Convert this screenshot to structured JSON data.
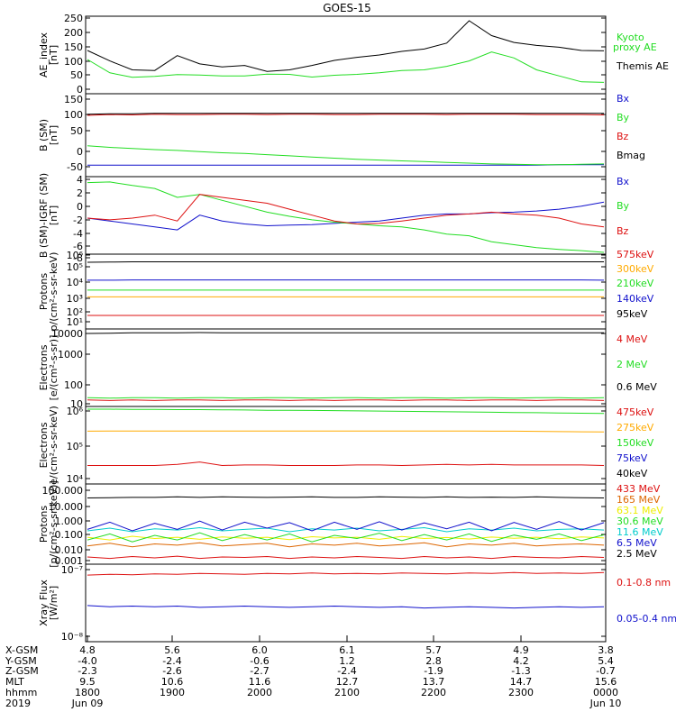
{
  "title": "GOES-15",
  "chart_data": [
    {
      "type": "line",
      "ylabel": [
        "AE_index",
        "[nT]"
      ],
      "yticks": [
        "250",
        "200",
        "150",
        "100",
        "50",
        "0"
      ],
      "ylim": [
        0,
        260
      ],
      "series": [
        {
          "name": "Kyoto",
          "name2": "proxy AE",
          "color": "#22dd22",
          "values": [
            115,
            70,
            55,
            58,
            64,
            63,
            60,
            60,
            66,
            65,
            56,
            62,
            65,
            70,
            78,
            80,
            92,
            110,
            140,
            120,
            80,
            60,
            40,
            38
          ]
        },
        {
          "name": "Themis AE",
          "color": "#000000",
          "values": [
            145,
            110,
            80,
            78,
            128,
            100,
            90,
            95,
            75,
            80,
            95,
            112,
            122,
            130,
            142,
            150,
            170,
            245,
            195,
            172,
            162,
            156,
            145,
            144
          ]
        }
      ]
    },
    {
      "type": "line",
      "ylabel": [
        "B (SM)",
        "[nT]"
      ],
      "yticks": [
        "150",
        "100",
        "50",
        "0",
        "-50"
      ],
      "ylim": [
        -60,
        155
      ],
      "series": [
        {
          "name": "Bx",
          "color": "#1111cc",
          "values": [
            -30,
            -30,
            -30,
            -30,
            -30,
            -30,
            -30,
            -30,
            -30,
            -30,
            -30,
            -30,
            -30,
            -30,
            -30,
            -30,
            -30,
            -30,
            -30,
            -30,
            -30,
            -29,
            -29,
            -29
          ]
        },
        {
          "name": "By",
          "color": "#22dd22",
          "values": [
            20,
            16,
            13,
            10,
            8,
            5,
            2,
            0,
            -3,
            -6,
            -9,
            -12,
            -15,
            -17,
            -19,
            -21,
            -23,
            -25,
            -27,
            -28,
            -29,
            -29,
            -28,
            -27
          ]
        },
        {
          "name": "Bz",
          "color": "#dd1111",
          "values": [
            99,
            101,
            100,
            102,
            101,
            101,
            102,
            102,
            101,
            102,
            102,
            101,
            101,
            102,
            102,
            102,
            101,
            102,
            102,
            102,
            101,
            101,
            101,
            100
          ]
        },
        {
          "name": "Bmag",
          "color": "#000000",
          "values": [
            102,
            103,
            103,
            104,
            104,
            104,
            104,
            104,
            104,
            104,
            104,
            104,
            104,
            104,
            104,
            104,
            104,
            104,
            104,
            104,
            104,
            104,
            104,
            104
          ]
        }
      ]
    },
    {
      "type": "line",
      "ylabel": [
        "B (SM)-IGRF (SM)",
        "[nT]"
      ],
      "yticks": [
        "4",
        "2",
        "0",
        "-2",
        "-4",
        "-6",
        "-8"
      ],
      "ylim": [
        -8.6,
        4.5
      ],
      "series": [
        {
          "name": "Bx",
          "color": "#1111cc",
          "values": [
            -2.5,
            -3,
            -3.5,
            -4,
            -4.5,
            -2,
            -3,
            -3.5,
            -3.8,
            -3.7,
            -3.6,
            -3.4,
            -3.2,
            -3,
            -2.5,
            -2,
            -1.8,
            -1.8,
            -1.6,
            -1.5,
            -1.3,
            -1,
            -0.5,
            0.2
          ]
        },
        {
          "name": "By",
          "color": "#22dd22",
          "values": [
            3.5,
            3.6,
            3,
            2.5,
            1,
            1.5,
            0.5,
            -0.5,
            -1.5,
            -2.2,
            -2.8,
            -3.2,
            -3.5,
            -3.8,
            -4,
            -4.5,
            -5.2,
            -5.5,
            -6.5,
            -7,
            -7.5,
            -7.8,
            -8,
            -8.3
          ]
        },
        {
          "name": "Bz",
          "color": "#dd1111",
          "values": [
            -2.5,
            -2.8,
            -2.5,
            -2,
            -3,
            1.5,
            1,
            0.5,
            0,
            -1,
            -2,
            -3,
            -3.5,
            -3.4,
            -3,
            -2.5,
            -2,
            -1.8,
            -1.5,
            -1.8,
            -2,
            -2.5,
            -3.5,
            -4
          ]
        }
      ]
    },
    {
      "type": "line",
      "log": true,
      "ylabel": [
        "Protons",
        "p/(cm²-s-sr-keV)"
      ],
      "yticks": [
        "10⁶",
        "10⁵",
        "10⁴",
        "10³",
        "10²",
        "10¹"
      ],
      "ylim": [
        3,
        1000000
      ],
      "series": [
        {
          "name": "575keV",
          "color": "#dd1111",
          "values": [
            30,
            30,
            30,
            30,
            30,
            30,
            30,
            30,
            30,
            30,
            30,
            30,
            30,
            30,
            30,
            30,
            30,
            30,
            30,
            30,
            30,
            30,
            30,
            30
          ]
        },
        {
          "name": "300keV",
          "color": "#ffaa00",
          "values": [
            700,
            700,
            700,
            700,
            700,
            700,
            700,
            700,
            700,
            700,
            700,
            700,
            700,
            700,
            700,
            700,
            700,
            700,
            700,
            700,
            700,
            700,
            700,
            700
          ]
        },
        {
          "name": "210keV",
          "color": "#22dd22",
          "values": [
            2200,
            2200,
            2200,
            2200,
            2200,
            2200,
            2200,
            2200,
            2200,
            2200,
            2200,
            2200,
            2200,
            2200,
            2200,
            2200,
            2200,
            2200,
            2200,
            2200,
            2200,
            2200,
            2200,
            2200
          ]
        },
        {
          "name": "140keV",
          "color": "#1111cc",
          "values": [
            12000,
            12000,
            12500,
            12500,
            12500,
            12500,
            12500,
            12500,
            12500,
            12500,
            12500,
            12500,
            12500,
            12500,
            12500,
            12500,
            12500,
            12500,
            12500,
            12500,
            12500,
            12500,
            12500,
            12000
          ]
        },
        {
          "name": "95keV",
          "color": "#000000",
          "values": [
            250000,
            260000,
            270000,
            270000,
            270000,
            270000,
            270000,
            270000,
            270000,
            270000,
            270000,
            270000,
            270000,
            270000,
            270000,
            270000,
            270000,
            270000,
            270000,
            270000,
            270000,
            270000,
            270000,
            270000
          ]
        }
      ]
    },
    {
      "type": "line",
      "log": true,
      "ylabel": [
        "Electrons",
        "[e/(cm²-s-sr)]"
      ],
      "yticks": [
        "10000",
        "1000",
        "100",
        "10"
      ],
      "ylim": [
        10,
        10500
      ],
      "series": [
        {
          "name": "4 MeV",
          "color": "#dd1111",
          "values": [
            18,
            17,
            18,
            17,
            18,
            18,
            17,
            18,
            18,
            17,
            18,
            17,
            18,
            18,
            17,
            18,
            18,
            17,
            18,
            18,
            17,
            18,
            18,
            17
          ]
        },
        {
          "name": "2 MeV",
          "color": "#22dd22",
          "values": [
            22,
            21,
            22,
            22,
            21,
            22,
            22,
            21,
            22,
            22,
            21,
            22,
            22,
            21,
            22,
            22,
            21,
            22,
            22,
            21,
            22,
            22,
            21,
            22
          ]
        },
        {
          "name": "0.6 MeV",
          "color": "#000000",
          "values": [
            7000,
            7200,
            7400,
            7500,
            7500,
            7600,
            7400,
            7500,
            7500,
            7500,
            7500,
            7500,
            7500,
            7500,
            7500,
            7500,
            7500,
            7500,
            7500,
            7500,
            7500,
            7500,
            7500,
            7500
          ]
        }
      ]
    },
    {
      "type": "line",
      "log": true,
      "ylabel": [
        "Electrons",
        "e/(cm²-s-sr-keV)"
      ],
      "yticks": [
        "10⁶",
        "10⁵",
        "10⁴"
      ],
      "ylim": [
        10000,
        1000000
      ],
      "series": [
        {
          "name": "475keV",
          "color": "#dd1111",
          "values": [
            30000,
            30000,
            30000,
            30000,
            32000,
            37000,
            30000,
            31000,
            31000,
            30000,
            30000,
            30000,
            31000,
            31000,
            30000,
            31000,
            32000,
            31000,
            32000,
            31000,
            31000,
            31000,
            31000,
            30000
          ]
        },
        {
          "name": "275keV",
          "color": "#ffaa00",
          "values": [
            230000,
            232000,
            232000,
            232000,
            232000,
            232000,
            232000,
            232000,
            232000,
            232000,
            232000,
            232000,
            232000,
            232000,
            232000,
            232000,
            232000,
            232000,
            230000,
            230000,
            228000,
            225000,
            222000,
            220000
          ]
        },
        {
          "name": "150keV",
          "color": "#22dd22",
          "values": [
            850000,
            850000,
            840000,
            840000,
            830000,
            830000,
            820000,
            810000,
            800000,
            800000,
            790000,
            780000,
            770000,
            760000,
            750000,
            740000,
            730000,
            720000,
            710000,
            700000,
            690000,
            680000,
            670000,
            660000
          ]
        },
        {
          "name": "75keV",
          "color": "#1111cc",
          "values": []
        },
        {
          "name": "40keV",
          "color": "#000000",
          "values": []
        }
      ]
    },
    {
      "type": "line",
      "log": true,
      "ylabel": [
        "Protons",
        "[p/(cm²-s-sr-keV)]"
      ],
      "yticks": [
        "100.000",
        "10.000",
        "1.000",
        "0.100",
        "0.010",
        "0.001"
      ],
      "ylim": [
        0.0005,
        100
      ],
      "series": [
        {
          "name": "433 MeV",
          "color": "#dd1111",
          "values": [
            0.0015,
            0.0012,
            0.0016,
            0.0013,
            0.0017,
            0.0012,
            0.0015,
            0.0014,
            0.0016,
            0.0012,
            0.0015,
            0.0013,
            0.0016,
            0.0014,
            0.0012,
            0.0016,
            0.0013,
            0.0015,
            0.0012,
            0.0016,
            0.0014,
            0.0013,
            0.0016,
            0.0014
          ]
        },
        {
          "name": "165 MeV",
          "color": "#dd6600",
          "values": [
            0.008,
            0.012,
            0.007,
            0.011,
            0.009,
            0.013,
            0.008,
            0.01,
            0.012,
            0.007,
            0.011,
            0.009,
            0.012,
            0.008,
            0.01,
            0.013,
            0.007,
            0.011,
            0.009,
            0.012,
            0.008,
            0.01,
            0.011,
            0.009
          ]
        },
        {
          "name": "63.1 MeV",
          "color": "#eeee00",
          "values": [
            0.03,
            0.02,
            0.035,
            0.025,
            0.03,
            0.022,
            0.032,
            0.026,
            0.03,
            0.021,
            0.033,
            0.027,
            0.03,
            0.022,
            0.034,
            0.025,
            0.029,
            0.023,
            0.031,
            0.026,
            0.03,
            0.024,
            0.032,
            0.027
          ]
        },
        {
          "name": "30.6 MeV",
          "color": "#22dd22",
          "values": [
            0.02,
            0.05,
            0.015,
            0.04,
            0.02,
            0.06,
            0.018,
            0.045,
            0.02,
            0.05,
            0.015,
            0.04,
            0.025,
            0.055,
            0.018,
            0.045,
            0.02,
            0.05,
            0.016,
            0.042,
            0.022,
            0.05,
            0.018,
            0.044
          ]
        },
        {
          "name": "11.6 MeV",
          "color": "#00cccc",
          "values": [
            0.08,
            0.12,
            0.07,
            0.11,
            0.09,
            0.13,
            0.08,
            0.1,
            0.12,
            0.07,
            0.11,
            0.09,
            0.12,
            0.08,
            0.1,
            0.13,
            0.07,
            0.11,
            0.09,
            0.12,
            0.08,
            0.1,
            0.11,
            0.09
          ]
        },
        {
          "name": "6.5 MeV",
          "color": "#1111cc",
          "values": [
            0.1,
            0.3,
            0.08,
            0.25,
            0.1,
            0.35,
            0.09,
            0.3,
            0.12,
            0.28,
            0.08,
            0.3,
            0.1,
            0.32,
            0.09,
            0.27,
            0.11,
            0.3,
            0.08,
            0.29,
            0.1,
            0.33,
            0.09,
            0.28
          ]
        },
        {
          "name": "2.5 MeV",
          "color": "#000000",
          "values": [
            12,
            12.5,
            13,
            13,
            14,
            13,
            14,
            13.5,
            13,
            13.5,
            14,
            13,
            13,
            14,
            13.5,
            13,
            14,
            13,
            13.5,
            13,
            14,
            13,
            12.5,
            12
          ]
        }
      ]
    },
    {
      "type": "line",
      "log": true,
      "ylabel": [
        "Xray Flux",
        "[W/m²]"
      ],
      "yticks": [
        "10⁻⁷",
        "10⁻⁸"
      ],
      "ylim": [
        8e-09,
        1e-07
      ],
      "series": [
        {
          "name": "0.1-0.8 nm",
          "color": "#dd1111",
          "values": [
            7e-08,
            7.2e-08,
            7.1e-08,
            7.3e-08,
            7.2e-08,
            7.4e-08,
            7.3e-08,
            7.2e-08,
            7.4e-08,
            7.3e-08,
            7.5e-08,
            7.3e-08,
            7.4e-08,
            7.3e-08,
            7.5e-08,
            7.4e-08,
            7.3e-08,
            7.5e-08,
            7.4e-08,
            7.6e-08,
            7.4e-08,
            7.5e-08,
            7.4e-08,
            7.6e-08
          ]
        },
        {
          "name": "0.05-0.4 nm",
          "color": "#1111cc",
          "values": [
            2.6e-08,
            2.5e-08,
            2.55e-08,
            2.5e-08,
            2.55e-08,
            2.45e-08,
            2.5e-08,
            2.55e-08,
            2.5e-08,
            2.45e-08,
            2.5e-08,
            2.55e-08,
            2.5e-08,
            2.45e-08,
            2.5e-08,
            2.4e-08,
            2.45e-08,
            2.5e-08,
            2.45e-08,
            2.4e-08,
            2.45e-08,
            2.5e-08,
            2.45e-08,
            2.5e-08
          ]
        }
      ]
    }
  ],
  "axis_table": {
    "rows": [
      {
        "label": "X-GSM",
        "values": [
          "4.8",
          "5.6",
          "6.0",
          "6.1",
          "5.7",
          "4.9",
          "3.8"
        ]
      },
      {
        "label": "Y-GSM",
        "values": [
          "-4.0",
          "-2.4",
          "-0.6",
          "1.2",
          "2.8",
          "4.2",
          "5.4"
        ]
      },
      {
        "label": "Z-GSM",
        "values": [
          "-2.3",
          "-2.6",
          "-2.7",
          "-2.4",
          "-1.9",
          "-1.3",
          "-0.7"
        ]
      },
      {
        "label": "MLT",
        "values": [
          "9.5",
          "10.6",
          "11.6",
          "12.7",
          "13.7",
          "14.7",
          "15.6"
        ]
      },
      {
        "label": "hhmm",
        "values": [
          "1800",
          "1900",
          "2000",
          "2100",
          "2200",
          "2300",
          "0000"
        ]
      }
    ],
    "year": "2019",
    "date_start": "Jun 09",
    "date_end": "Jun 10"
  }
}
